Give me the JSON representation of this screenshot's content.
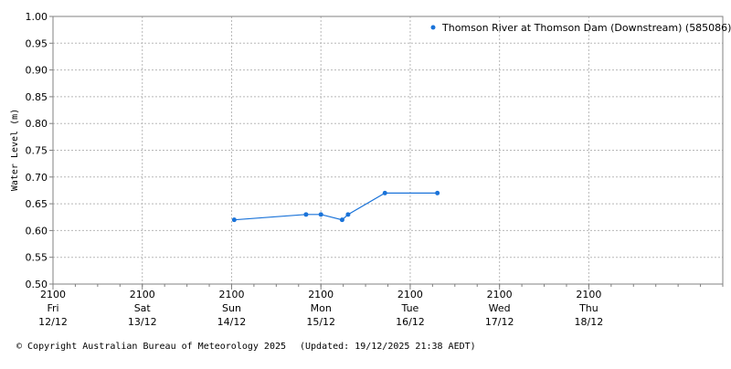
{
  "chart_data": {
    "type": "line",
    "title": "",
    "ylabel": "Water Level (m)",
    "xlabel": "",
    "ylim": [
      0.5,
      1.0
    ],
    "yticks": [
      "0.50",
      "0.55",
      "0.60",
      "0.65",
      "0.70",
      "0.75",
      "0.80",
      "0.85",
      "0.90",
      "0.95",
      "1.00"
    ],
    "x_range_hours": [
      0,
      180
    ],
    "x_ticks": [
      {
        "time": "2100",
        "day": "Fri",
        "date": "12/12",
        "hour": 0
      },
      {
        "time": "2100",
        "day": "Sat",
        "date": "13/12",
        "hour": 24
      },
      {
        "time": "2100",
        "day": "Sun",
        "date": "14/12",
        "hour": 48
      },
      {
        "time": "2100",
        "day": "Mon",
        "date": "15/12",
        "hour": 72
      },
      {
        "time": "2100",
        "day": "Tue",
        "date": "16/12",
        "hour": 96
      },
      {
        "time": "2100",
        "day": "Wed",
        "date": "17/12",
        "hour": 120
      },
      {
        "time": "2100",
        "day": "Thu",
        "date": "18/12",
        "hour": 144
      }
    ],
    "grid": true,
    "legend_position": "top-right",
    "series": [
      {
        "name": "Thomson River at Thomson Dam (Downstream) (585086)",
        "color": "#1a73d9",
        "points": [
          {
            "x": "14/12 21:40",
            "hour": 48.7,
            "y": 0.62
          },
          {
            "x": "15/12 17:00",
            "hour": 68.0,
            "y": 0.63
          },
          {
            "x": "15/12 21:00",
            "hour": 72.0,
            "y": 0.63
          },
          {
            "x": "16/12 02:40",
            "hour": 77.7,
            "y": 0.62
          },
          {
            "x": "16/12 04:20",
            "hour": 79.3,
            "y": 0.63
          },
          {
            "x": "16/12 14:10",
            "hour": 89.2,
            "y": 0.67
          },
          {
            "x": "17/12 04:20",
            "hour": 103.3,
            "y": 0.67
          }
        ]
      }
    ]
  },
  "footer": {
    "copyright": "© Copyright Australian Bureau of Meteorology 2025",
    "updated": "(Updated: 19/12/2025 21:38 AEDT)"
  }
}
